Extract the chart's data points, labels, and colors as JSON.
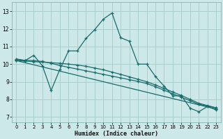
{
  "xlabel": "Humidex (Indice chaleur)",
  "bg_color": "#cce8e8",
  "grid_color": "#aacece",
  "line_color": "#1a6b6b",
  "xlim": [
    -0.5,
    23.5
  ],
  "ylim": [
    6.7,
    13.5
  ],
  "yticks": [
    7,
    8,
    9,
    10,
    11,
    12,
    13
  ],
  "xticks": [
    0,
    1,
    2,
    3,
    4,
    5,
    6,
    7,
    8,
    9,
    10,
    11,
    12,
    13,
    14,
    15,
    16,
    17,
    18,
    19,
    20,
    21,
    22,
    23
  ],
  "series1_x": [
    0,
    1,
    2,
    3,
    4,
    5,
    6,
    7,
    8,
    9,
    10,
    11,
    12,
    13,
    14,
    15,
    16,
    17,
    18,
    19,
    20,
    21,
    22,
    23
  ],
  "series1_y": [
    10.3,
    10.2,
    10.5,
    9.9,
    8.5,
    9.7,
    10.75,
    10.75,
    11.45,
    11.95,
    12.55,
    12.9,
    11.5,
    11.3,
    10.0,
    10.0,
    9.3,
    8.75,
    8.2,
    8.2,
    7.5,
    7.3,
    7.6,
    7.4
  ],
  "series2_x": [
    0,
    1,
    2,
    3,
    4,
    5,
    6,
    7,
    8,
    9,
    10,
    11,
    12,
    13,
    14,
    15,
    16,
    17,
    18,
    19,
    20,
    21,
    22,
    23
  ],
  "series2_y": [
    10.25,
    10.22,
    10.2,
    10.15,
    10.05,
    9.92,
    9.82,
    9.72,
    9.62,
    9.52,
    9.42,
    9.32,
    9.22,
    9.12,
    9.02,
    8.9,
    8.72,
    8.52,
    8.32,
    8.12,
    7.92,
    7.72,
    7.62,
    7.52
  ],
  "series3_x": [
    0,
    1,
    2,
    3,
    4,
    5,
    6,
    7,
    8,
    9,
    10,
    11,
    12,
    13,
    14,
    15,
    16,
    17,
    18,
    19,
    20,
    21,
    22,
    23
  ],
  "series3_y": [
    10.2,
    10.17,
    10.14,
    10.11,
    10.08,
    10.05,
    10.0,
    9.95,
    9.88,
    9.78,
    9.68,
    9.55,
    9.42,
    9.28,
    9.14,
    9.0,
    8.82,
    8.62,
    8.42,
    8.22,
    8.0,
    7.78,
    7.65,
    7.52
  ],
  "series4_x": [
    0,
    23
  ],
  "series4_y": [
    10.2,
    7.45
  ]
}
